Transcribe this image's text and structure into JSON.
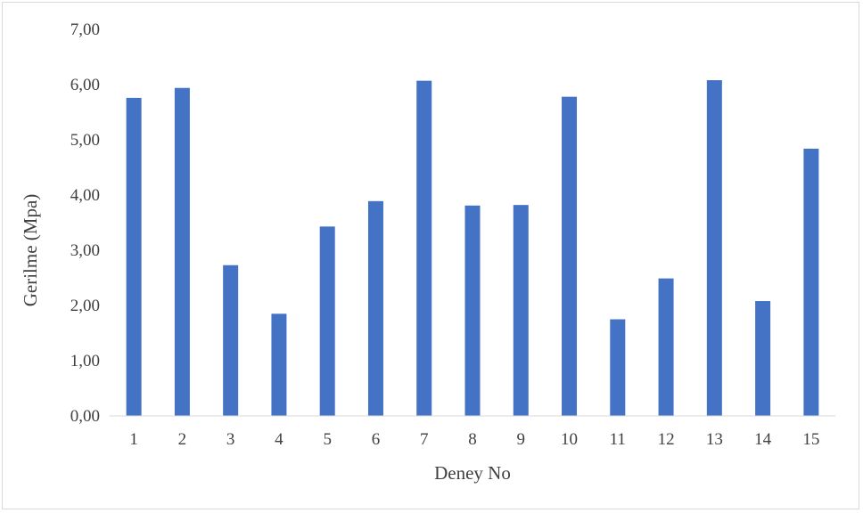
{
  "chart_data": {
    "type": "bar",
    "title": "",
    "xlabel": "Deney No",
    "ylabel": "Gerilme (Mpa)",
    "categories": [
      "1",
      "2",
      "3",
      "4",
      "5",
      "6",
      "7",
      "8",
      "9",
      "10",
      "11",
      "12",
      "13",
      "14",
      "15"
    ],
    "series": [
      {
        "values": [
          5.76,
          5.94,
          2.73,
          1.85,
          3.43,
          3.89,
          6.07,
          3.81,
          3.82,
          5.78,
          1.75,
          2.49,
          6.08,
          2.08,
          4.84
        ]
      }
    ],
    "ylim": [
      0,
      7
    ],
    "yticks": [
      "0,00",
      "1,00",
      "2,00",
      "3,00",
      "4,00",
      "5,00",
      "6,00",
      "7,00"
    ],
    "bar_color": "#4472c4",
    "grid": false,
    "legend": "none"
  }
}
